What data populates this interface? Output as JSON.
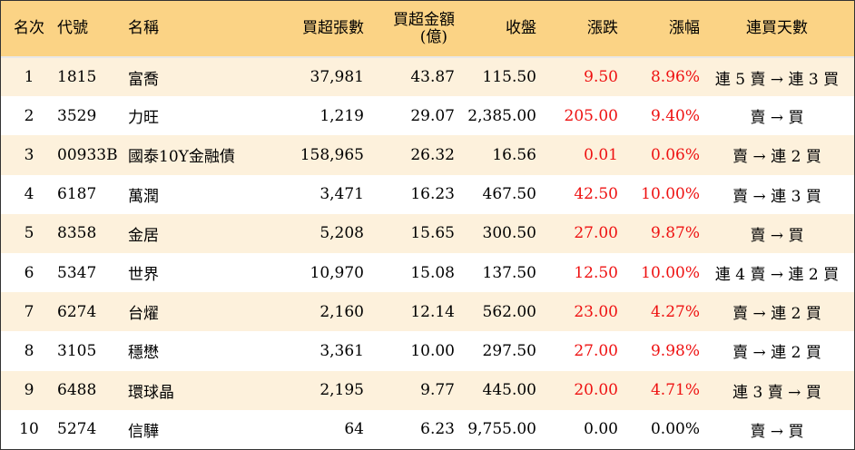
{
  "headers": {
    "rank": "名次",
    "code": "代號",
    "name": "名稱",
    "volume": "買超張數",
    "amount_line1": "買超金額",
    "amount_line2": "(億)",
    "close": "收盤",
    "change": "漲跌",
    "pct": "漲幅",
    "streak": "連買天數"
  },
  "colors": {
    "header_bg": "#fbd385",
    "odd_row_bg": "#fdf1dc",
    "up": "#ee1111"
  },
  "rows": [
    {
      "rank": "1",
      "code": "1815",
      "name": "富喬",
      "volume": "37,981",
      "amount": "43.87",
      "close": "115.50",
      "change": "9.50",
      "pct": "8.96%",
      "streak": "連 5 賣 → 連 3 買",
      "up": true
    },
    {
      "rank": "2",
      "code": "3529",
      "name": "力旺",
      "volume": "1,219",
      "amount": "29.07",
      "close": "2,385.00",
      "change": "205.00",
      "pct": "9.40%",
      "streak": "賣 → 買",
      "up": true
    },
    {
      "rank": "3",
      "code": "00933B",
      "name": "國泰10Y金融債",
      "volume": "158,965",
      "amount": "26.32",
      "close": "16.56",
      "change": "0.01",
      "pct": "0.06%",
      "streak": "賣 → 連 2 買",
      "up": true
    },
    {
      "rank": "4",
      "code": "6187",
      "name": "萬潤",
      "volume": "3,471",
      "amount": "16.23",
      "close": "467.50",
      "change": "42.50",
      "pct": "10.00%",
      "streak": "賣 → 連 3 買",
      "up": true
    },
    {
      "rank": "5",
      "code": "8358",
      "name": "金居",
      "volume": "5,208",
      "amount": "15.65",
      "close": "300.50",
      "change": "27.00",
      "pct": "9.87%",
      "streak": "賣 → 買",
      "up": true
    },
    {
      "rank": "6",
      "code": "5347",
      "name": "世界",
      "volume": "10,970",
      "amount": "15.08",
      "close": "137.50",
      "change": "12.50",
      "pct": "10.00%",
      "streak": "連 4 賣 → 連 2 買",
      "up": true
    },
    {
      "rank": "7",
      "code": "6274",
      "name": "台燿",
      "volume": "2,160",
      "amount": "12.14",
      "close": "562.00",
      "change": "23.00",
      "pct": "4.27%",
      "streak": "賣 → 連 2 買",
      "up": true
    },
    {
      "rank": "8",
      "code": "3105",
      "name": "穩懋",
      "volume": "3,361",
      "amount": "10.00",
      "close": "297.50",
      "change": "27.00",
      "pct": "9.98%",
      "streak": "賣 → 連 2 買",
      "up": true
    },
    {
      "rank": "9",
      "code": "6488",
      "name": "環球晶",
      "volume": "2,195",
      "amount": "9.77",
      "close": "445.00",
      "change": "20.00",
      "pct": "4.71%",
      "streak": "連 3 賣 → 買",
      "up": true
    },
    {
      "rank": "10",
      "code": "5274",
      "name": "信驊",
      "volume": "64",
      "amount": "6.23",
      "close": "9,755.00",
      "change": "0.00",
      "pct": "0.00%",
      "streak": "賣 → 買",
      "up": false
    }
  ]
}
